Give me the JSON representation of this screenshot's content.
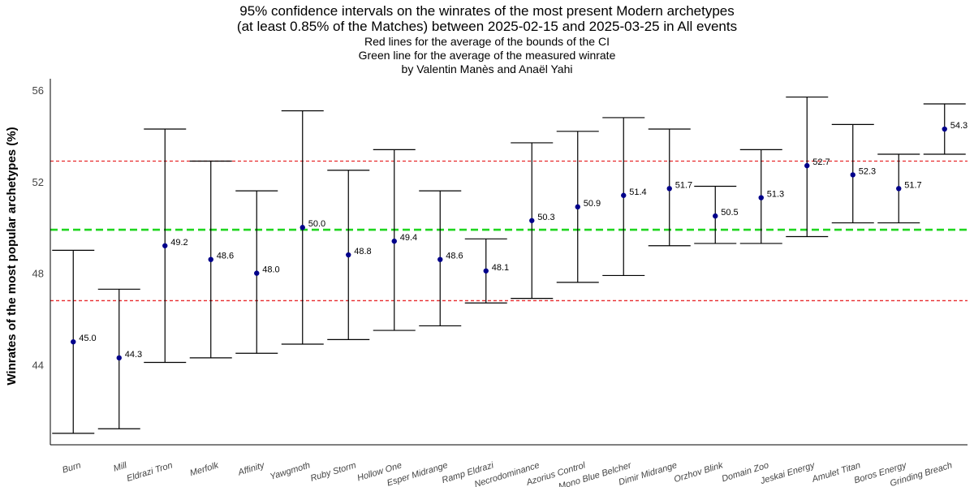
{
  "chart_data": {
    "type": "errorbar",
    "title_lines": [
      "95% confidence intervals on the winrates of the most present Modern archetypes",
      "(at least 0.85% of the Matches) between 2025-02-15 and 2025-03-25 in All events"
    ],
    "subtitle_lines": [
      "Red lines for the average of the bounds of the CI",
      "Green line for the average of the measured winrate",
      "by Valentin Manès and Anaël Yahi"
    ],
    "ylabel": "Winrates of the most popular archetypes (%)",
    "ylim": [
      40.5,
      56.5
    ],
    "yticks": [
      44,
      48,
      52,
      56
    ],
    "categories": [
      "Burn",
      "Mill",
      "Eldrazi Tron",
      "Merfolk",
      "Affinity",
      "Yawgmoth",
      "Ruby Storm",
      "Hollow One",
      "Esper Midrange",
      "Ramp Eldrazi",
      "Necrodominance",
      "Azorius Control",
      "Mono Blue Belcher",
      "Dimir Midrange",
      "Orzhov Blink",
      "Domain Zoo",
      "Jeskai Energy",
      "Amulet Titan",
      "Boros Energy",
      "Grinding Breach"
    ],
    "values": [
      45.0,
      44.3,
      49.2,
      48.6,
      48.0,
      50.0,
      48.8,
      49.4,
      48.6,
      48.1,
      50.3,
      50.9,
      51.4,
      51.7,
      50.5,
      51.3,
      52.7,
      52.3,
      51.7,
      54.3
    ],
    "value_labels": [
      "45.0",
      "44.3",
      "49.2",
      "48.6",
      "48.0",
      "50.0",
      "48.8",
      "49.4",
      "48.6",
      "48.1",
      "50.3",
      "50.9",
      "51.4",
      "51.7",
      "50.5",
      "51.3",
      "52.7",
      "52.3",
      "51.7",
      "54.3"
    ],
    "lower": [
      41.0,
      41.2,
      44.1,
      44.3,
      44.5,
      44.9,
      45.1,
      45.5,
      45.7,
      46.7,
      46.9,
      47.6,
      47.9,
      49.2,
      49.3,
      49.3,
      49.6,
      50.2,
      50.2,
      53.2
    ],
    "upper": [
      49.0,
      47.3,
      54.3,
      52.9,
      51.6,
      55.1,
      52.5,
      53.4,
      51.6,
      49.5,
      53.7,
      54.2,
      54.8,
      54.3,
      51.8,
      53.4,
      55.7,
      54.5,
      53.2,
      55.4
    ],
    "reference_lines": [
      {
        "kind": "ci_bound_average",
        "value": 52.9,
        "color": "#e8292b",
        "style": "dotted"
      },
      {
        "kind": "ci_bound_average",
        "value": 46.8,
        "color": "#e8292b",
        "style": "dotted"
      },
      {
        "kind": "winrate_average",
        "value": 49.9,
        "color": "#1fd51f",
        "style": "dashed"
      }
    ],
    "point_color": "#00008b",
    "bar_color": "#000000",
    "grid": false
  }
}
